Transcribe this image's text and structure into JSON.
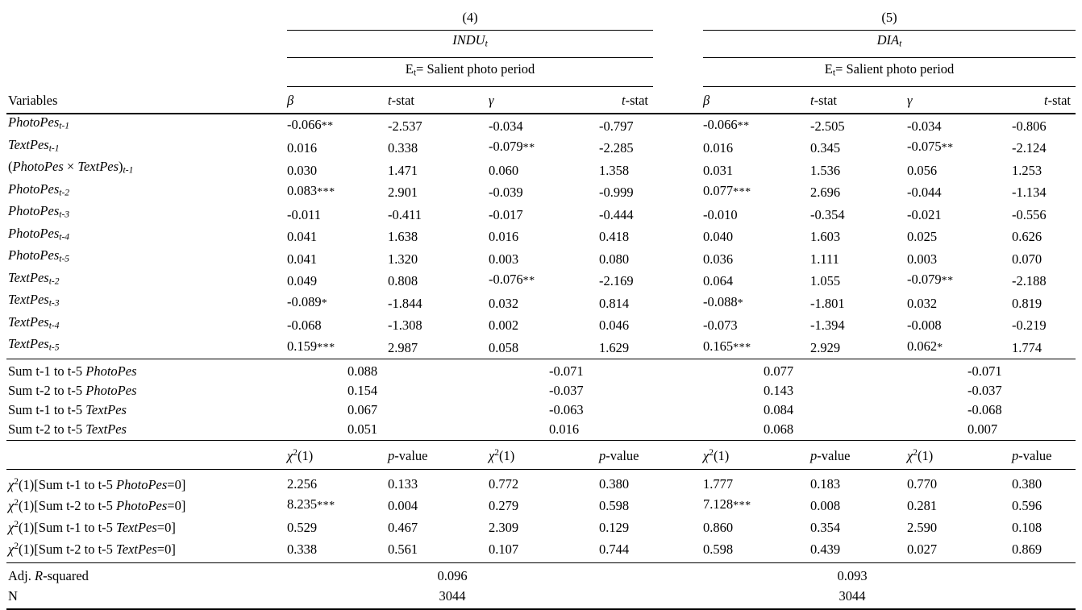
{
  "table": {
    "variables_label": "Variables",
    "groups": [
      {
        "number": "(4)",
        "dep_var": [
          [
            "i",
            "INDU"
          ],
          [
            "sbi",
            "t"
          ]
        ],
        "condition": [
          [
            "r",
            "E"
          ],
          [
            "sb",
            "t"
          ],
          [
            "r",
            "= Salient photo period"
          ]
        ]
      },
      {
        "number": "(5)",
        "dep_var": [
          [
            "i",
            "DIA"
          ],
          [
            "sbi",
            "t"
          ]
        ],
        "condition": [
          [
            "r",
            "E"
          ],
          [
            "sb",
            "t"
          ],
          [
            "r",
            "= Salient photo period"
          ]
        ]
      }
    ],
    "headers": {
      "beta": [
        [
          "i",
          "β"
        ]
      ],
      "tstat": [
        [
          "i",
          "t"
        ],
        [
          "r",
          "-stat"
        ]
      ],
      "gamma": [
        [
          "i",
          "γ"
        ]
      ],
      "chi": [
        [
          "i",
          "χ"
        ],
        [
          "sp",
          "2"
        ],
        [
          "r",
          "(1)"
        ]
      ],
      "pvalue": [
        [
          "i",
          "p"
        ],
        [
          "r",
          "-value"
        ]
      ]
    },
    "body_rows": [
      {
        "label": [
          [
            "i",
            "PhotoPes"
          ],
          [
            "sbi",
            "t-1"
          ]
        ],
        "cells": [
          "-0.066**",
          "-2.537",
          "-0.034",
          "-0.797",
          "-0.066**",
          "-2.505",
          "-0.034",
          "-0.806"
        ]
      },
      {
        "label": [
          [
            "i",
            "TextPes"
          ],
          [
            "sbi",
            "t-1"
          ]
        ],
        "cells": [
          "0.016",
          "0.338",
          "-0.079**",
          "-2.285",
          "0.016",
          "0.345",
          "-0.075**",
          "-2.124"
        ]
      },
      {
        "label": [
          [
            "r",
            "("
          ],
          [
            "i",
            "PhotoPes"
          ],
          [
            "r",
            " × "
          ],
          [
            "i",
            "TextPes"
          ],
          [
            "r",
            ")"
          ],
          [
            "sbi",
            "t-1"
          ]
        ],
        "cells": [
          "0.030",
          "1.471",
          "0.060",
          "1.358",
          "0.031",
          "1.536",
          "0.056",
          "1.253"
        ]
      },
      {
        "label": [
          [
            "i",
            "PhotoPes"
          ],
          [
            "sbi",
            "t-2"
          ]
        ],
        "cells": [
          "0.083***",
          "2.901",
          "-0.039",
          "-0.999",
          "0.077***",
          "2.696",
          "-0.044",
          "-1.134"
        ]
      },
      {
        "label": [
          [
            "i",
            "PhotoPes"
          ],
          [
            "sbi",
            "t-3"
          ]
        ],
        "cells": [
          "-0.011",
          "-0.411",
          "-0.017",
          "-0.444",
          "-0.010",
          "-0.354",
          "-0.021",
          "-0.556"
        ]
      },
      {
        "label": [
          [
            "i",
            "PhotoPes"
          ],
          [
            "sbi",
            "t-4"
          ]
        ],
        "cells": [
          "0.041",
          "1.638",
          "0.016",
          "0.418",
          "0.040",
          "1.603",
          "0.025",
          "0.626"
        ]
      },
      {
        "label": [
          [
            "i",
            "PhotoPes"
          ],
          [
            "sbi",
            "t-5"
          ]
        ],
        "cells": [
          "0.041",
          "1.320",
          "0.003",
          "0.080",
          "0.036",
          "1.111",
          "0.003",
          "0.070"
        ]
      },
      {
        "label": [
          [
            "i",
            "TextPes"
          ],
          [
            "sbi",
            "t-2"
          ]
        ],
        "cells": [
          "0.049",
          "0.808",
          "-0.076**",
          "-2.169",
          "0.064",
          "1.055",
          "-0.079**",
          "-2.188"
        ]
      },
      {
        "label": [
          [
            "i",
            "TextPes"
          ],
          [
            "sbi",
            "t-3"
          ]
        ],
        "cells": [
          "-0.089*",
          "-1.844",
          "0.032",
          "0.814",
          "-0.088*",
          "-1.801",
          "0.032",
          "0.819"
        ]
      },
      {
        "label": [
          [
            "i",
            "TextPes"
          ],
          [
            "sbi",
            "t-4"
          ]
        ],
        "cells": [
          "-0.068",
          "-1.308",
          "0.002",
          "0.046",
          "-0.073",
          "-1.394",
          "-0.008",
          "-0.219"
        ]
      },
      {
        "label": [
          [
            "i",
            "TextPes"
          ],
          [
            "sbi",
            "t-5"
          ]
        ],
        "cells": [
          "0.159***",
          "2.987",
          "0.058",
          "1.629",
          "0.165***",
          "2.929",
          "0.062*",
          "1.774"
        ]
      }
    ],
    "sum_rows": [
      {
        "label": [
          [
            "r",
            "Sum t-1 to t-5 "
          ],
          [
            "i",
            "PhotoPes"
          ]
        ],
        "cells": [
          "0.088",
          "-0.071",
          "0.077",
          "-0.071"
        ]
      },
      {
        "label": [
          [
            "r",
            "Sum t-2 to t-5 "
          ],
          [
            "i",
            "PhotoPes"
          ]
        ],
        "cells": [
          "0.154",
          "-0.037",
          "0.143",
          "-0.037"
        ]
      },
      {
        "label": [
          [
            "r",
            "Sum t-1 to t-5 "
          ],
          [
            "i",
            "TextPes"
          ]
        ],
        "cells": [
          "0.067",
          "-0.063",
          "0.084",
          "-0.068"
        ]
      },
      {
        "label": [
          [
            "r",
            "Sum t-2 to t-5 "
          ],
          [
            "i",
            "TextPes"
          ]
        ],
        "cells": [
          "0.051",
          "0.016",
          "0.068",
          "0.007"
        ]
      }
    ],
    "test_rows": [
      {
        "label": [
          [
            "i",
            "χ"
          ],
          [
            "sp",
            "2"
          ],
          [
            "r",
            "(1)[Sum t-1 to t-5 "
          ],
          [
            "i",
            "PhotoPes"
          ],
          [
            "r",
            "=0]"
          ]
        ],
        "cells": [
          "2.256",
          "0.133",
          "0.772",
          "0.380",
          "1.777",
          "0.183",
          "0.770",
          "0.380"
        ]
      },
      {
        "label": [
          [
            "i",
            "χ"
          ],
          [
            "sp",
            "2"
          ],
          [
            "r",
            "(1)[Sum t-2 to t-5 "
          ],
          [
            "i",
            "PhotoPes"
          ],
          [
            "r",
            "=0]"
          ]
        ],
        "cells": [
          "8.235***",
          "0.004",
          "0.279",
          "0.598",
          "7.128***",
          "0.008",
          "0.281",
          "0.596"
        ]
      },
      {
        "label": [
          [
            "i",
            "χ"
          ],
          [
            "sp",
            "2"
          ],
          [
            "r",
            "(1)[Sum t-1 to t-5 "
          ],
          [
            "i",
            "TextPes"
          ],
          [
            "r",
            "=0]"
          ]
        ],
        "cells": [
          "0.529",
          "0.467",
          "2.309",
          "0.129",
          "0.860",
          "0.354",
          "2.590",
          "0.108"
        ]
      },
      {
        "label": [
          [
            "i",
            "χ"
          ],
          [
            "sp",
            "2"
          ],
          [
            "r",
            "(1)[Sum t-2 to t-5 "
          ],
          [
            "i",
            "TextPes"
          ],
          [
            "r",
            "=0]"
          ]
        ],
        "cells": [
          "0.338",
          "0.561",
          "0.107",
          "0.744",
          "0.598",
          "0.439",
          "0.027",
          "0.869"
        ]
      }
    ],
    "stats_rows": [
      {
        "label": [
          [
            "r",
            "Adj. "
          ],
          [
            "i",
            "R"
          ],
          [
            "r",
            "-squared"
          ]
        ],
        "cells": [
          "0.096",
          "0.093"
        ]
      },
      {
        "label": [
          [
            "r",
            "N"
          ]
        ],
        "cells": [
          "3044",
          "3044"
        ]
      }
    ]
  }
}
